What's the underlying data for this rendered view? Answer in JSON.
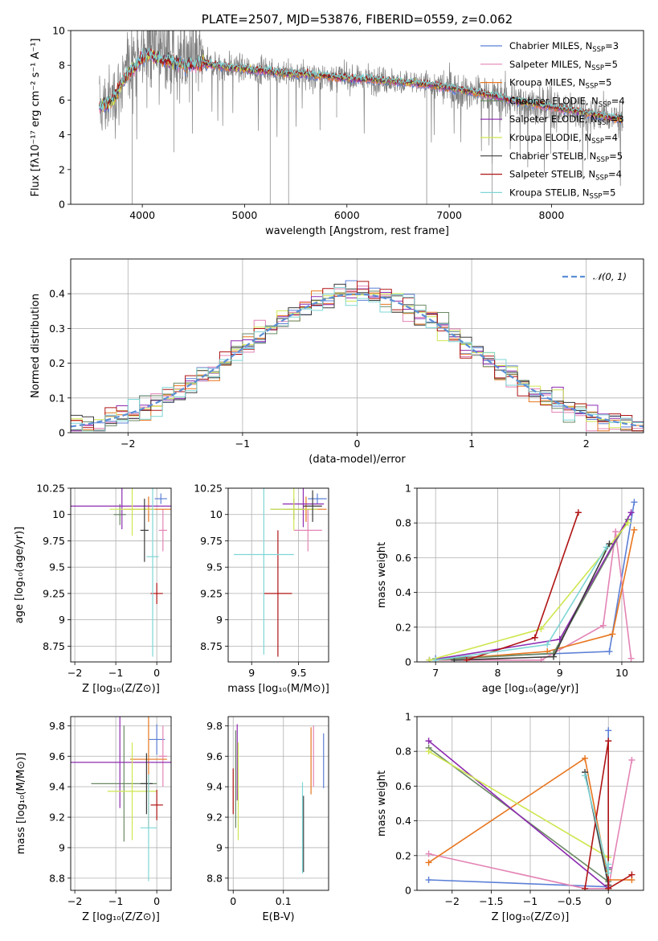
{
  "figure": {
    "title": "PLATE=2507, MJD=53876, FIBERID=0559, z=0.062"
  },
  "colors": {
    "chabrier_miles": "#5b7fd6",
    "salpeter_miles": "#e384b5",
    "kroupa_miles": "#e8761f",
    "chabrier_elodie": "#6b8a64",
    "salpeter_elodie": "#8e2bb1",
    "kroupa_elodie": "#cfe650",
    "chabrier_stelib": "#3b3b3b",
    "salpeter_stelib": "#b01414",
    "kroupa_stelib": "#7fd6d6",
    "data": "#808080",
    "gauss": "#5b8fd6"
  },
  "legend_spectrum": [
    {
      "name": "Chabrier MILES",
      "nssp": "=3",
      "color_key": "chabrier_miles"
    },
    {
      "name": "Salpeter MILES",
      "nssp": "=5",
      "color_key": "salpeter_miles"
    },
    {
      "name": "Kroupa MILES",
      "nssp": "=5",
      "color_key": "kroupa_miles"
    },
    {
      "name": "Chabrier ELODIE",
      "nssp": "=4",
      "color_key": "chabrier_elodie"
    },
    {
      "name": "Salpeter ELODIE",
      "nssp": "=3",
      "color_key": "salpeter_elodie"
    },
    {
      "name": "Kroupa ELODIE",
      "nssp": "=4",
      "color_key": "kroupa_elodie"
    },
    {
      "name": "Chabrier STELIB",
      "nssp": "=5",
      "color_key": "chabrier_stelib"
    },
    {
      "name": "Salpeter STELIB",
      "nssp": "=4",
      "color_key": "salpeter_stelib"
    },
    {
      "name": "Kroupa STELIB",
      "nssp": "=5",
      "color_key": "kroupa_stelib"
    }
  ],
  "chart_data": [
    {
      "id": "spectrum",
      "type": "line",
      "title": "PLATE=2507, MJD=53876, FIBERID=0559, z=0.062",
      "xlabel": "wavelength [Angstrom, rest frame]",
      "ylabel": "Flux [fλ10⁻¹⁷ erg cm⁻² s⁻¹ A⁻¹]",
      "xlim": [
        3300,
        8900
      ],
      "ylim": [
        0,
        10
      ],
      "xticks": [
        4000,
        5000,
        6000,
        7000,
        8000
      ],
      "yticks": [
        0,
        2,
        4,
        6,
        8,
        10
      ],
      "continuum": {
        "x": [
          3600,
          3650,
          3700,
          3750,
          3800,
          3850,
          3900,
          3950,
          4000,
          4050,
          4100,
          4200,
          4300,
          4400,
          4500,
          4600,
          4700,
          4800,
          4900,
          5000,
          5100,
          5200,
          5300,
          5400,
          5500,
          5600,
          5700,
          5800,
          5900,
          6000,
          6200,
          6400,
          6600,
          6800,
          7000,
          7200,
          7400,
          7600,
          7800,
          8000,
          8200,
          8400,
          8600,
          8700
        ],
        "y": [
          5.6,
          5.8,
          6.0,
          6.4,
          7.0,
          7.4,
          7.8,
          8.1,
          8.4,
          8.6,
          8.5,
          8.3,
          8.2,
          8.0,
          8.0,
          8.1,
          8.0,
          7.9,
          7.85,
          7.8,
          7.7,
          7.7,
          7.6,
          7.55,
          7.5,
          7.5,
          7.4,
          7.4,
          7.3,
          7.25,
          7.2,
          7.1,
          7.0,
          6.9,
          6.7,
          6.5,
          6.3,
          6.0,
          5.8,
          5.6,
          5.4,
          5.2,
          5.0,
          4.9
        ]
      },
      "series": [
        {
          "name": "Chabrier MILES, N_SSP=3",
          "color_key": "chabrier_miles"
        },
        {
          "name": "Salpeter MILES, N_SSP=5",
          "color_key": "salpeter_miles"
        },
        {
          "name": "Kroupa MILES, N_SSP=5",
          "color_key": "kroupa_miles"
        },
        {
          "name": "Chabrier ELODIE, N_SSP=4",
          "color_key": "chabrier_elodie"
        },
        {
          "name": "Salpeter ELODIE, N_SSP=3",
          "color_key": "salpeter_elodie"
        },
        {
          "name": "Kroupa ELODIE, N_SSP=4",
          "color_key": "kroupa_elodie"
        },
        {
          "name": "Chabrier STELIB, N_SSP=5",
          "color_key": "chabrier_stelib"
        },
        {
          "name": "Salpeter STELIB, N_SSP=4",
          "color_key": "salpeter_stelib"
        },
        {
          "name": "Kroupa STELIB, N_SSP=5",
          "color_key": "kroupa_stelib"
        }
      ]
    },
    {
      "id": "residuals",
      "type": "line",
      "xlabel": "(data-model)/error",
      "ylabel": "Normed distribution",
      "xlim": [
        -2.5,
        2.5
      ],
      "ylim": [
        0,
        0.5
      ],
      "xticks": [
        -2,
        -1,
        0,
        1,
        2
      ],
      "yticks": [
        0.0,
        0.1,
        0.2,
        0.3,
        0.4
      ],
      "grid": true,
      "legend": "$\\mathcal{N}(0,1)$",
      "legend_position": "top-right",
      "bin_width": 0.1
    },
    {
      "id": "age_vs_Z",
      "type": "scatter",
      "xlabel": "Z [log₁₀(Z/Z⊙)]",
      "ylabel": "age  [log₁₀(age/yr)]",
      "xlim": [
        -2.1,
        0.35
      ],
      "ylim": [
        8.6,
        10.25
      ],
      "xticks": [
        -2,
        -1,
        0
      ],
      "yticks": [
        8.75,
        9.0,
        9.25,
        9.5,
        9.75,
        10.0,
        10.25
      ],
      "grid": true,
      "points": [
        {
          "color_key": "chabrier_miles",
          "x": 0.1,
          "y": 10.15,
          "xerr": 0.15,
          "yerr": 0.05
        },
        {
          "color_key": "salpeter_miles",
          "x": 0.15,
          "y": 9.85,
          "xerr": 0.1,
          "yerr": 0.2
        },
        {
          "color_key": "kroupa_miles",
          "x": -0.2,
          "y": 10.05,
          "xerr": 0.6,
          "yerr": 0.12
        },
        {
          "color_key": "chabrier_elodie",
          "x": -0.9,
          "y": 10.0,
          "xerr": 0.15,
          "yerr": 0.1
        },
        {
          "color_key": "salpeter_elodie",
          "x": -0.85,
          "y": 10.08,
          "xerr": 1.25,
          "yerr": 0.22
        },
        {
          "color_key": "kroupa_elodie",
          "x": -0.6,
          "y": 10.05,
          "xerr": 0.55,
          "yerr": 0.25
        },
        {
          "color_key": "chabrier_stelib",
          "x": -0.3,
          "y": 9.85,
          "xerr": 0.1,
          "yerr": 0.3
        },
        {
          "color_key": "salpeter_stelib",
          "x": 0.0,
          "y": 9.25,
          "xerr": 0.15,
          "yerr": 0.1
        },
        {
          "color_key": "kroupa_stelib",
          "x": -0.1,
          "y": 9.6,
          "xerr": 0.15,
          "yerr": 0.95
        }
      ]
    },
    {
      "id": "age_vs_mass",
      "type": "scatter",
      "xlabel": "mass [log₁₀(M/M⊙)]",
      "xlim": [
        8.75,
        9.82
      ],
      "ylim": [
        8.6,
        10.25
      ],
      "xticks": [
        9.0,
        9.5
      ],
      "yticks": [
        8.75,
        9.0,
        9.25,
        9.5,
        9.75,
        10.0,
        10.25
      ],
      "grid": true,
      "points": [
        {
          "color_key": "chabrier_miles",
          "x": 9.7,
          "y": 10.15,
          "xerr": 0.1,
          "yerr": 0.05
        },
        {
          "color_key": "salpeter_miles",
          "x": 9.6,
          "y": 9.85,
          "xerr": 0.15,
          "yerr": 0.2
        },
        {
          "color_key": "kroupa_miles",
          "x": 9.58,
          "y": 10.05,
          "xerr": 0.22,
          "yerr": 0.12
        },
        {
          "color_key": "chabrier_elodie",
          "x": 9.45,
          "y": 10.05,
          "xerr": 0.25,
          "yerr": 0.1
        },
        {
          "color_key": "salpeter_elodie",
          "x": 9.55,
          "y": 10.1,
          "xerr": 0.22,
          "yerr": 0.22
        },
        {
          "color_key": "kroupa_elodie",
          "x": 9.45,
          "y": 10.05,
          "xerr": 0.25,
          "yerr": 0.2
        },
        {
          "color_key": "chabrier_stelib",
          "x": 9.65,
          "y": 10.08,
          "xerr": 0.1,
          "yerr": 0.15
        },
        {
          "color_key": "salpeter_stelib",
          "x": 9.28,
          "y": 9.25,
          "xerr": 0.15,
          "yerr": 0.6
        },
        {
          "color_key": "kroupa_stelib",
          "x": 9.13,
          "y": 9.62,
          "xerr": 0.32,
          "yerr": 0.95
        }
      ]
    },
    {
      "id": "weight_vs_age",
      "type": "line",
      "xlabel": "age  [log₁₀(age/yr)]",
      "ylabel": "mass weight",
      "xlim": [
        6.7,
        10.35
      ],
      "ylim": [
        0,
        1
      ],
      "xticks": [
        7,
        8,
        9,
        10
      ],
      "yticks": [
        0.0,
        0.2,
        0.4,
        0.6,
        0.8,
        1.0
      ],
      "grid": true,
      "series": [
        {
          "color_key": "chabrier_miles",
          "x": [
            7.0,
            9.8,
            10.2
          ],
          "y": [
            0.02,
            0.06,
            0.92
          ]
        },
        {
          "color_key": "salpeter_miles",
          "x": [
            7.0,
            8.7,
            9.7,
            9.9,
            10.15
          ],
          "y": [
            0.01,
            0.01,
            0.21,
            0.75,
            0.02
          ]
        },
        {
          "color_key": "kroupa_miles",
          "x": [
            7.0,
            8.8,
            9.85,
            10.2
          ],
          "y": [
            0.01,
            0.06,
            0.16,
            0.76
          ]
        },
        {
          "color_key": "chabrier_elodie",
          "x": [
            6.9,
            8.9,
            10.1
          ],
          "y": [
            0.01,
            0.05,
            0.82
          ]
        },
        {
          "color_key": "salpeter_elodie",
          "x": [
            6.9,
            9.0,
            10.15
          ],
          "y": [
            0.01,
            0.13,
            0.86
          ]
        },
        {
          "color_key": "kroupa_elodie",
          "x": [
            6.9,
            8.7,
            10.1
          ],
          "y": [
            0.01,
            0.19,
            0.8
          ]
        },
        {
          "color_key": "chabrier_stelib",
          "x": [
            7.3,
            8.9,
            9.8
          ],
          "y": [
            0.01,
            0.03,
            0.68
          ]
        },
        {
          "color_key": "salpeter_stelib",
          "x": [
            7.5,
            8.6,
            9.3
          ],
          "y": [
            0.01,
            0.14,
            0.86
          ]
        },
        {
          "color_key": "kroupa_stelib",
          "x": [
            7.0,
            8.8,
            9.75
          ],
          "y": [
            0.01,
            0.1,
            0.66
          ]
        }
      ]
    },
    {
      "id": "mass_vs_Z",
      "type": "scatter",
      "xlabel": "Z [log₁₀(Z/Z⊙)]",
      "ylabel": "mass [log₁₀(M/M⊙)]",
      "xlim": [
        -2.1,
        0.35
      ],
      "ylim": [
        8.72,
        9.86
      ],
      "xticks": [
        -2,
        -1,
        0
      ],
      "yticks": [
        8.8,
        9.0,
        9.2,
        9.4,
        9.6,
        9.8
      ],
      "grid": true,
      "points": [
        {
          "color_key": "chabrier_miles",
          "x": 0.0,
          "y": 9.71,
          "xerr": 0.2,
          "yerr": 0.1
        },
        {
          "color_key": "salpeter_miles",
          "x": 0.15,
          "y": 9.6,
          "xerr": 0.1,
          "yerr": 0.2
        },
        {
          "color_key": "kroupa_miles",
          "x": -0.2,
          "y": 9.58,
          "xerr": 0.45,
          "yerr": 0.45
        },
        {
          "color_key": "chabrier_elodie",
          "x": -0.8,
          "y": 9.42,
          "xerr": 0.8,
          "yerr": 0.38
        },
        {
          "color_key": "salpeter_elodie",
          "x": -0.9,
          "y": 9.56,
          "xerr": 1.3,
          "yerr": 0.3
        },
        {
          "color_key": "kroupa_elodie",
          "x": -0.6,
          "y": 9.37,
          "xerr": 0.6,
          "yerr": 0.32
        },
        {
          "color_key": "chabrier_stelib",
          "x": -0.25,
          "y": 9.42,
          "xerr": 0.15,
          "yerr": 0.2
        },
        {
          "color_key": "salpeter_stelib",
          "x": 0.0,
          "y": 9.28,
          "xerr": 0.15,
          "yerr": 0.1
        },
        {
          "color_key": "kroupa_stelib",
          "x": -0.2,
          "y": 9.13,
          "xerr": 0.2,
          "yerr": 0.35
        }
      ]
    },
    {
      "id": "mass_vs_EBV",
      "type": "scatter",
      "xlabel": "E(B-V)",
      "xlim": [
        -0.01,
        0.19
      ],
      "ylim": [
        8.72,
        9.86
      ],
      "xticks": [
        0.0,
        0.1
      ],
      "yticks": [
        8.8,
        9.0,
        9.2,
        9.4,
        9.6,
        9.8
      ],
      "grid": true,
      "points": [
        {
          "color_key": "chabrier_miles",
          "x": 0.18,
          "y": 9.57,
          "yerr": 0.18
        },
        {
          "color_key": "salpeter_miles",
          "x": 0.16,
          "y": 9.6,
          "yerr": 0.2
        },
        {
          "color_key": "kroupa_miles",
          "x": 0.155,
          "y": 9.57,
          "yerr": 0.22
        },
        {
          "color_key": "chabrier_elodie",
          "x": 0.005,
          "y": 9.45,
          "yerr": 0.32
        },
        {
          "color_key": "salpeter_elodie",
          "x": 0.008,
          "y": 9.56,
          "yerr": 0.25
        },
        {
          "color_key": "kroupa_elodie",
          "x": 0.01,
          "y": 9.37,
          "yerr": 0.32
        },
        {
          "color_key": "chabrier_stelib",
          "x": 0.14,
          "y": 9.09,
          "yerr": 0.25
        },
        {
          "color_key": "salpeter_stelib",
          "x": 0.0,
          "y": 9.37,
          "yerr": 0.15
        },
        {
          "color_key": "kroupa_stelib",
          "x": 0.138,
          "y": 9.13,
          "yerr": 0.3
        }
      ]
    },
    {
      "id": "weight_vs_Z",
      "type": "line",
      "xlabel": "Z [log₁₀(Z/Z⊙)]",
      "ylabel": "mass weight",
      "xlim": [
        -2.45,
        0.45
      ],
      "ylim": [
        0,
        1
      ],
      "xticks": [
        -2.0,
        -1.5,
        -1.0,
        -0.5,
        0.0
      ],
      "yticks": [
        0.0,
        0.2,
        0.4,
        0.6,
        0.8,
        1.0
      ],
      "grid": true,
      "series": [
        {
          "color_key": "chabrier_miles",
          "x": [
            -2.3,
            0.0,
            0.0
          ],
          "y": [
            0.06,
            0.02,
            0.92
          ]
        },
        {
          "color_key": "salpeter_miles",
          "x": [
            -2.3,
            -0.3,
            0.0,
            0.3
          ],
          "y": [
            0.21,
            0.01,
            0.01,
            0.75
          ]
        },
        {
          "color_key": "kroupa_miles",
          "x": [
            -2.3,
            -0.3,
            0.0,
            0.3
          ],
          "y": [
            0.16,
            0.76,
            0.06,
            0.06
          ]
        },
        {
          "color_key": "chabrier_elodie",
          "x": [
            -2.3,
            0.0,
            0.0
          ],
          "y": [
            0.82,
            0.05,
            0.12
          ]
        },
        {
          "color_key": "salpeter_elodie",
          "x": [
            -2.3,
            0.0,
            0.0
          ],
          "y": [
            0.86,
            0.01,
            0.13
          ]
        },
        {
          "color_key": "kroupa_elodie",
          "x": [
            -2.3,
            0.0,
            0.0
          ],
          "y": [
            0.8,
            0.19,
            0.01
          ]
        },
        {
          "color_key": "chabrier_stelib",
          "x": [
            -0.3,
            0.0,
            0.0
          ],
          "y": [
            0.68,
            0.03,
            0.01
          ]
        },
        {
          "color_key": "salpeter_stelib",
          "x": [
            -0.3,
            0.0,
            0.0,
            0.3
          ],
          "y": [
            0.01,
            0.86,
            0.01,
            0.09
          ]
        },
        {
          "color_key": "kroupa_stelib",
          "x": [
            -0.3,
            0.0,
            0.0
          ],
          "y": [
            0.66,
            0.1,
            0.15
          ]
        }
      ]
    }
  ]
}
